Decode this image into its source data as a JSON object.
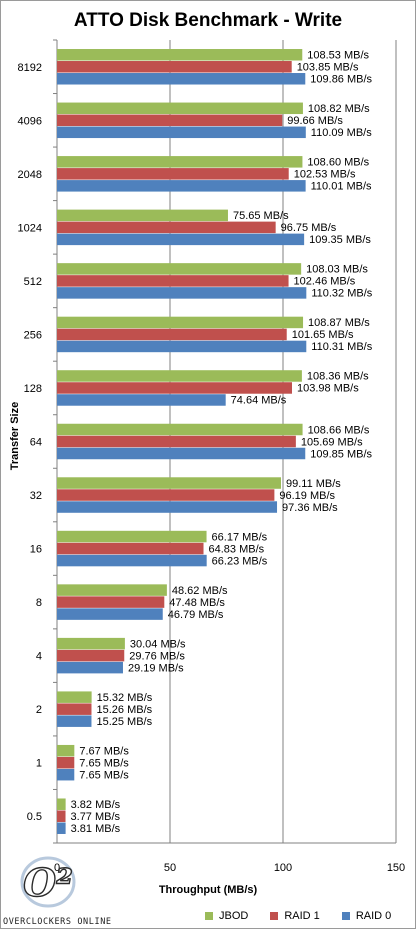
{
  "chart_data": {
    "type": "bar",
    "orientation": "horizontal",
    "title": "ATTO Disk Benchmark - Write",
    "xlabel": "Throughput (MB/s)",
    "ylabel": "Transfer Size",
    "xlim": [
      0,
      150
    ],
    "xticks": [
      "0",
      "50",
      "100",
      "150"
    ],
    "categories": [
      "8192",
      "4096",
      "2048",
      "1024",
      "512",
      "256",
      "128",
      "64",
      "32",
      "16",
      "8",
      "4",
      "2",
      "1",
      "0.5"
    ],
    "unit": "MB/s",
    "legend_position": "bottom-right",
    "grid": true,
    "series": [
      {
        "name": "JBOD",
        "color": "#9bbb59",
        "values": [
          108.53,
          108.82,
          108.6,
          75.65,
          108.03,
          108.87,
          108.36,
          108.66,
          99.11,
          66.17,
          48.62,
          30.04,
          15.32,
          7.67,
          3.82
        ],
        "labels": [
          "108.53 MB/s",
          "108.82 MB/s",
          "108.60 MB/s",
          "75.65 MB/s",
          "108.03 MB/s",
          "108.87 MB/s",
          "108.36 MB/s",
          "108.66 MB/s",
          "99.11 MB/s",
          "66.17 MB/s",
          "48.62 MB/s",
          "30.04 MB/s",
          "15.32 MB/s",
          "7.67 MB/s",
          "3.82 MB/s"
        ]
      },
      {
        "name": "RAID 1",
        "color": "#c0504d",
        "values": [
          103.85,
          99.66,
          102.53,
          96.75,
          102.46,
          101.65,
          103.98,
          105.69,
          96.19,
          64.83,
          47.48,
          29.76,
          15.26,
          7.65,
          3.77
        ],
        "labels": [
          "103.85 MB/s",
          "99.66 MB/s",
          "102.53 MB/s",
          "96.75 MB/s",
          "102.46 MB/s",
          "101.65 MB/s",
          "103.98 MB/s",
          "105.69 MB/s",
          "96.19 MB/s",
          "64.83 MB/s",
          "47.48 MB/s",
          "29.76 MB/s",
          "15.26 MB/s",
          "7.65 MB/s",
          "3.77 MB/s"
        ]
      },
      {
        "name": "RAID 0",
        "color": "#4f81bd",
        "values": [
          109.86,
          110.09,
          110.01,
          109.35,
          110.32,
          110.31,
          74.64,
          109.85,
          97.36,
          66.23,
          46.79,
          29.19,
          15.25,
          7.65,
          3.81
        ],
        "labels": [
          "109.86 MB/s",
          "110.09 MB/s",
          "110.01 MB/s",
          "109.35 MB/s",
          "110.32 MB/s",
          "110.31 MB/s",
          "74.64 MB/s",
          "109.85 MB/s",
          "97.36 MB/s",
          "66.23 MB/s",
          "46.79 MB/s",
          "29.19 MB/s",
          "15.25 MB/s",
          "7.65 MB/s",
          "3.81 MB/s"
        ]
      }
    ]
  },
  "watermark": {
    "text": "OVERCLOCKERS ONLINE",
    "logo_text": "O²"
  }
}
